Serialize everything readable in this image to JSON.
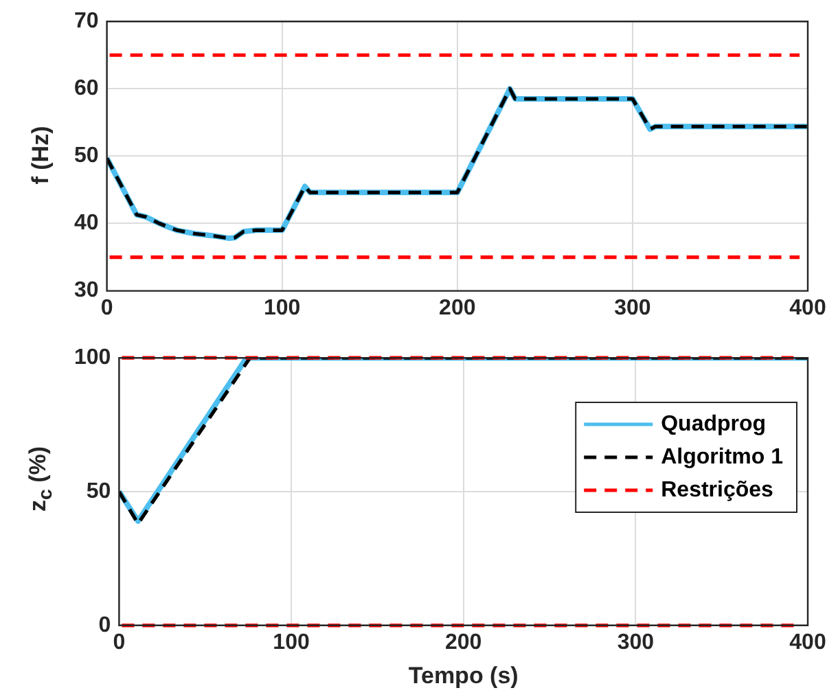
{
  "chart_data": [
    {
      "type": "line",
      "ylabel": "f (Hz)",
      "xlim": [
        0,
        400
      ],
      "xticks": [
        0,
        100,
        200,
        300,
        400
      ],
      "ylim": [
        30,
        70
      ],
      "yticks": [
        30,
        40,
        50,
        60,
        70
      ],
      "grid": true,
      "legend": false,
      "marker": "none",
      "series": [
        {
          "color": "#4dbeee",
          "line_style": "solid",
          "x": [
            0,
            17,
            22,
            30,
            40,
            50,
            60,
            70,
            73,
            78,
            85,
            100,
            113,
            116,
            200,
            230,
            233,
            300,
            310,
            313,
            400
          ],
          "values": [
            49.7,
            41.3,
            41,
            40,
            39,
            38.5,
            38.2,
            37.8,
            37.9,
            38.8,
            39,
            39,
            45.5,
            44.6,
            44.6,
            60,
            58.5,
            58.5,
            54,
            54.4,
            54.4
          ]
        },
        {
          "color": "#000000",
          "line_style": "dashed",
          "x": [
            0,
            17,
            22,
            30,
            40,
            50,
            60,
            70,
            73,
            78,
            85,
            100,
            113,
            116,
            200,
            230,
            233,
            300,
            310,
            313,
            400
          ],
          "values": [
            49.7,
            41.3,
            41,
            40,
            39,
            38.5,
            38.2,
            37.8,
            37.9,
            38.8,
            39,
            39,
            45.5,
            44.6,
            44.6,
            60,
            58.5,
            58.5,
            54,
            54.4,
            54.4
          ]
        }
      ],
      "ref_lines": [
        {
          "axis": "y",
          "value": 65,
          "color": "#ff0000",
          "line_style": "dashed"
        },
        {
          "axis": "y",
          "value": 35,
          "color": "#ff0000",
          "line_style": "dashed"
        }
      ]
    },
    {
      "type": "line",
      "xlabel": "Tempo (s)",
      "ylabel": "z$_{c}$ (%)",
      "xlim": [
        0,
        400
      ],
      "xticks": [
        0,
        100,
        200,
        300,
        400
      ],
      "ylim": [
        0,
        100
      ],
      "yticks": [
        0,
        50,
        100
      ],
      "grid": true,
      "legend": "right",
      "marker": "none",
      "series": [
        {
          "name": "Quadprog",
          "color": "#4dbeee",
          "line_style": "solid",
          "x": [
            0,
            11,
            74,
            400
          ],
          "values": [
            50,
            39,
            100,
            100
          ]
        },
        {
          "name": "Algoritmo 1",
          "color": "#000000",
          "line_style": "dashed",
          "x": [
            0,
            11,
            76,
            400
          ],
          "values": [
            50,
            38,
            100,
            100
          ]
        }
      ],
      "ref_lines": [
        {
          "axis": "y",
          "value": 100,
          "color": "#ff0000",
          "line_style": "dashed",
          "label": "Restrições"
        },
        {
          "axis": "y",
          "value": 0,
          "color": "#ff0000",
          "line_style": "dashed"
        }
      ]
    }
  ]
}
